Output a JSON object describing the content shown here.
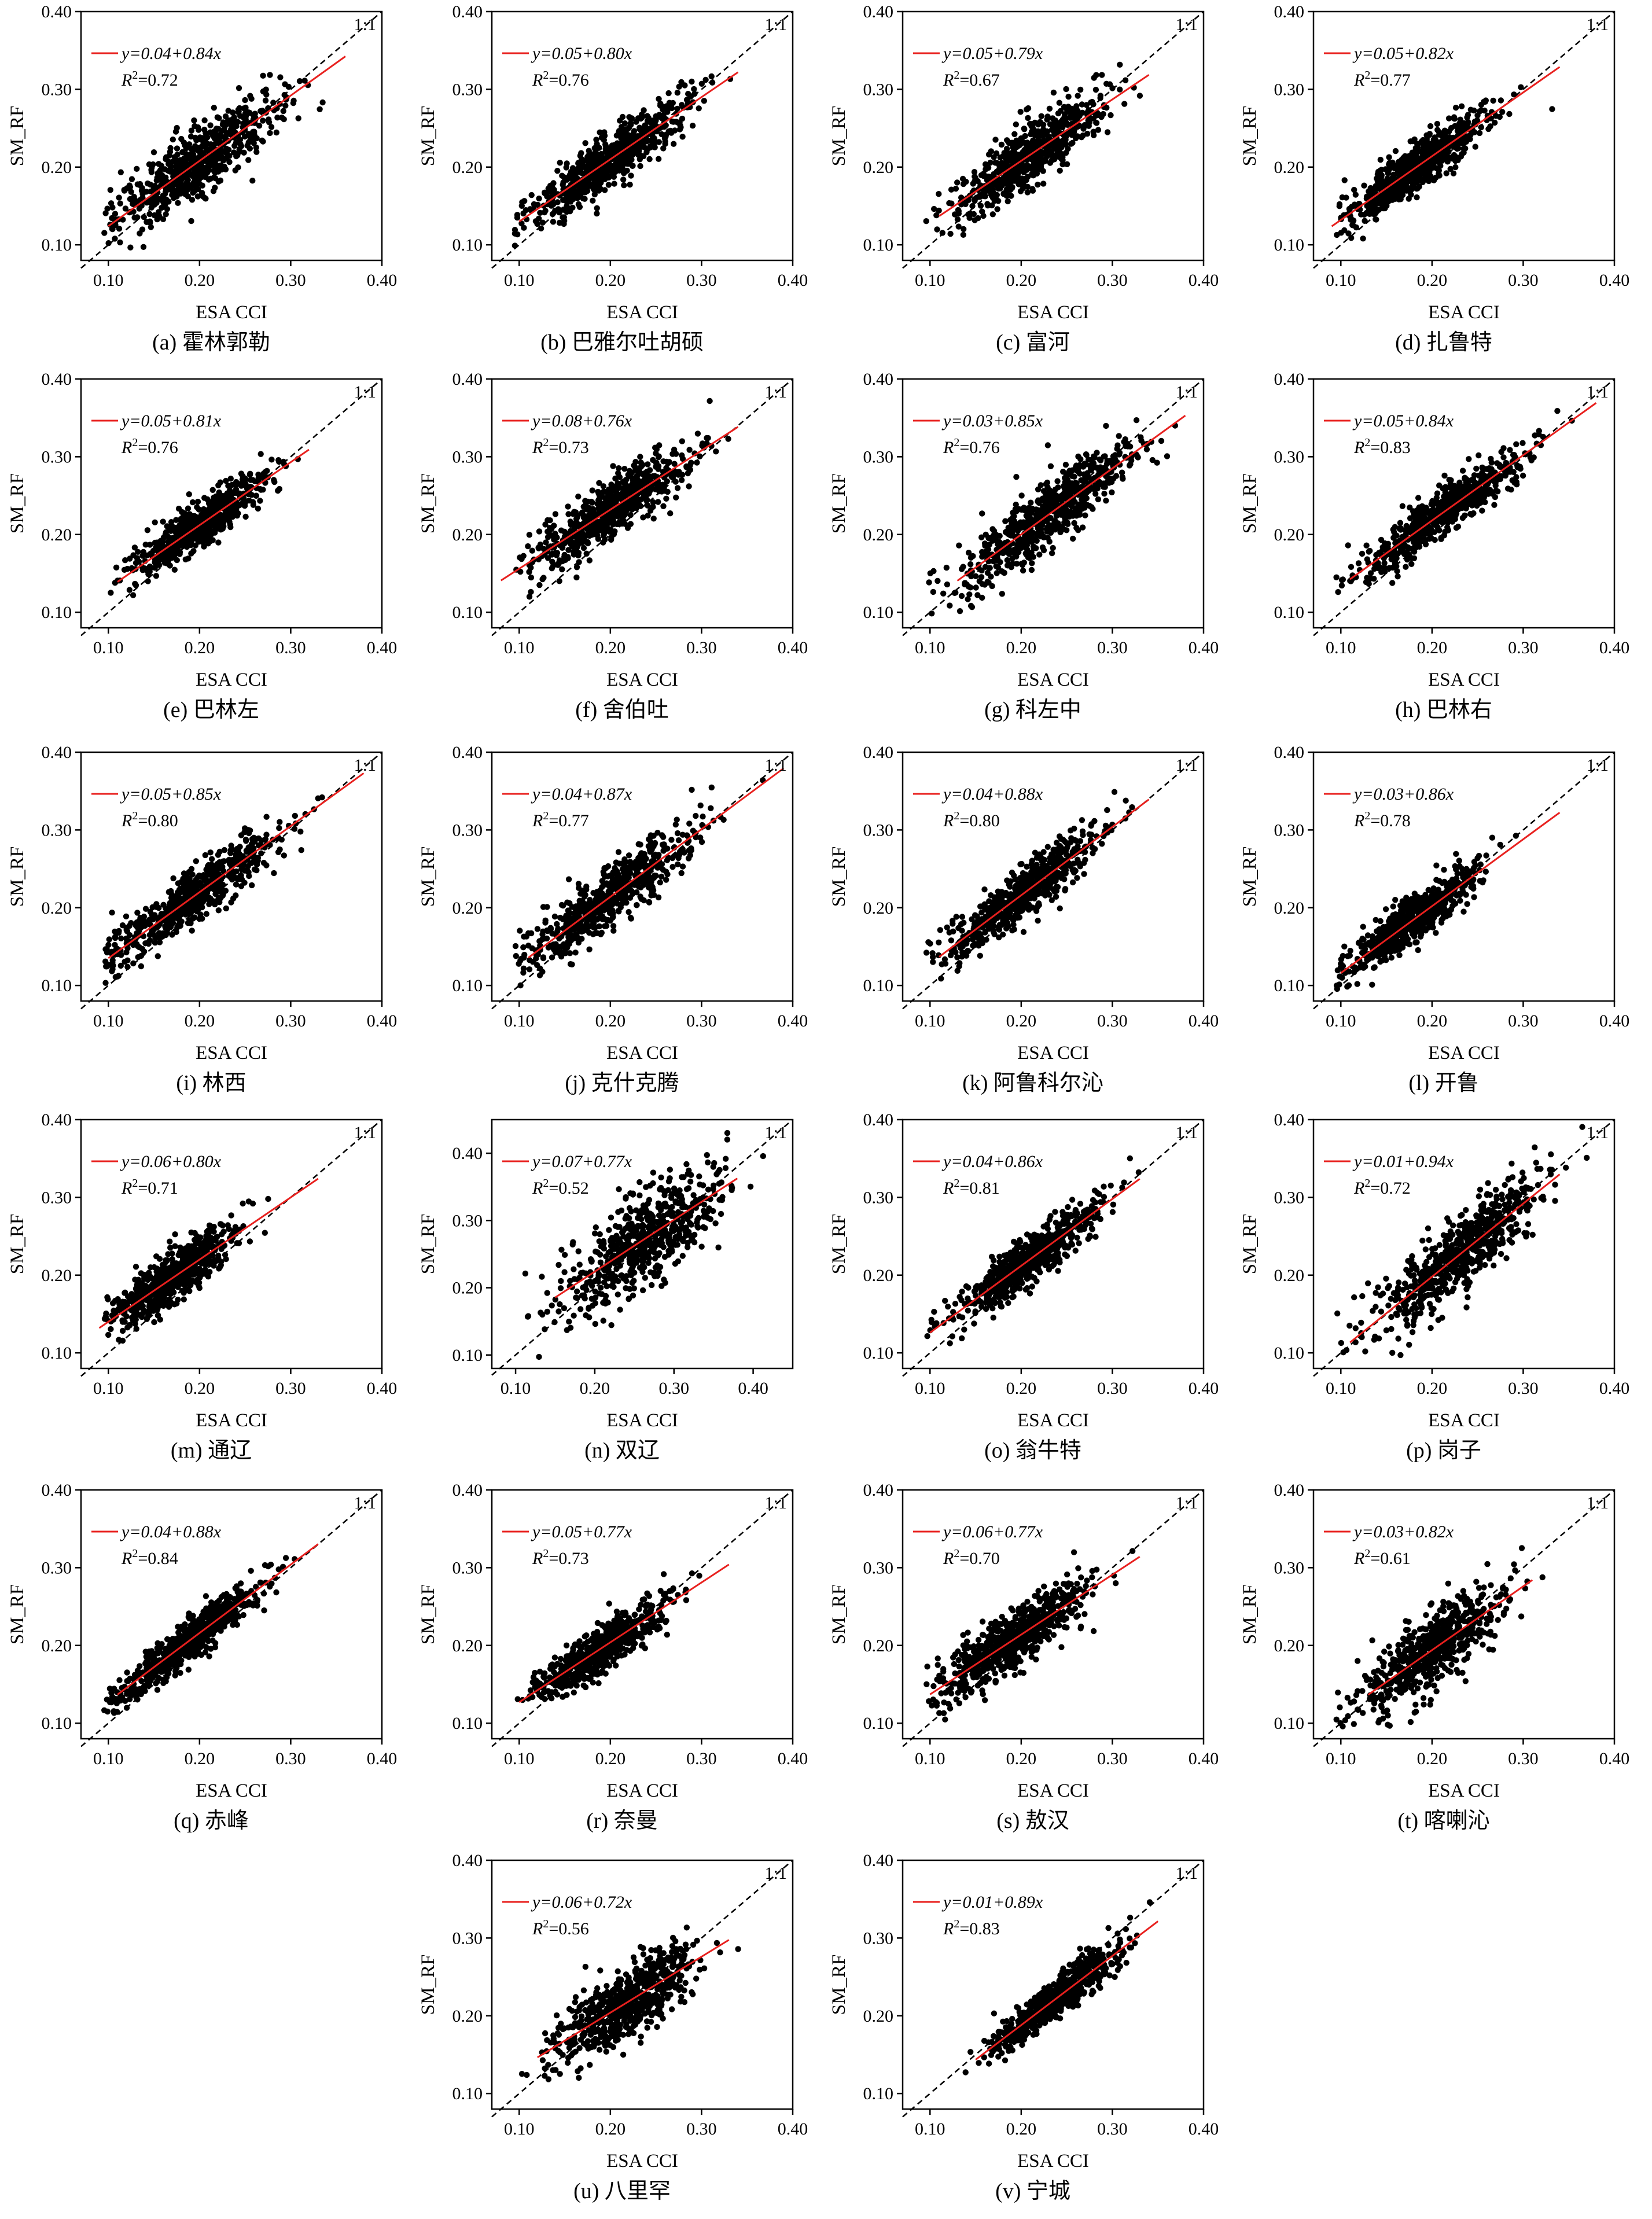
{
  "figure": {
    "x_label": "ESA CCI",
    "y_label": "SM_RF",
    "one_to_one_label": "1:1",
    "r2_prefix": "R",
    "axis_ticks": [
      "0.10",
      "0.20",
      "0.30",
      "0.40"
    ],
    "colors": {
      "points": "#000000",
      "fit_line": "#e8201e",
      "one_to_one": "#000000",
      "axes": "#000000"
    }
  },
  "chart_data": [
    {
      "type": "scatter",
      "id": "a",
      "caption": "(a) 霍林郭勒",
      "equation": "y=0.04+0.84x",
      "r2_value": "=0.72",
      "intercept": 0.04,
      "slope": 0.84,
      "r2": 0.72,
      "x_center": 0.2,
      "y_center": 0.21,
      "spread": 0.045,
      "fit_x": [
        0.1,
        0.36
      ],
      "xlim": [
        0.07,
        0.4
      ],
      "ylim": [
        0.08,
        0.4
      ],
      "xlabel": "ESA CCI",
      "ylabel": "SM_RF"
    },
    {
      "type": "scatter",
      "id": "b",
      "caption": "(b) 巴雅尔吐胡硕",
      "equation": "y=0.05+0.80x",
      "r2_value": "=0.76",
      "intercept": 0.05,
      "slope": 0.8,
      "r2": 0.76,
      "x_center": 0.2,
      "y_center": 0.21,
      "spread": 0.042,
      "fit_x": [
        0.1,
        0.34
      ],
      "xlim": [
        0.07,
        0.4
      ],
      "ylim": [
        0.08,
        0.4
      ],
      "xlabel": "ESA CCI",
      "ylabel": "SM_RF"
    },
    {
      "type": "scatter",
      "id": "c",
      "caption": "(c) 富河",
      "equation": "y=0.05+0.79x",
      "r2_value": "=0.67",
      "intercept": 0.05,
      "slope": 0.79,
      "r2": 0.67,
      "x_center": 0.21,
      "y_center": 0.22,
      "spread": 0.04,
      "fit_x": [
        0.11,
        0.34
      ],
      "xlim": [
        0.07,
        0.4
      ],
      "ylim": [
        0.08,
        0.4
      ],
      "xlabel": "ESA CCI",
      "ylabel": "SM_RF"
    },
    {
      "type": "scatter",
      "id": "d",
      "caption": "(d) 扎鲁特",
      "equation": "y=0.05+0.82x",
      "r2_value": "=0.77",
      "intercept": 0.05,
      "slope": 0.82,
      "r2": 0.77,
      "x_center": 0.18,
      "y_center": 0.2,
      "spread": 0.04,
      "fit_x": [
        0.09,
        0.34
      ],
      "xlim": [
        0.07,
        0.4
      ],
      "ylim": [
        0.08,
        0.4
      ],
      "xlabel": "ESA CCI",
      "ylabel": "SM_RF"
    },
    {
      "type": "scatter",
      "id": "e",
      "caption": "(e) 巴林左",
      "equation": "y=0.05+0.81x",
      "r2_value": "=0.76",
      "intercept": 0.05,
      "slope": 0.81,
      "r2": 0.76,
      "x_center": 0.2,
      "y_center": 0.21,
      "spread": 0.035,
      "fit_x": [
        0.11,
        0.32
      ],
      "xlim": [
        0.07,
        0.4
      ],
      "ylim": [
        0.08,
        0.4
      ],
      "xlabel": "ESA CCI",
      "ylabel": "SM_RF"
    },
    {
      "type": "scatter",
      "id": "f",
      "caption": "(f) 舍伯吐",
      "equation": "y=0.08+0.76x",
      "r2_value": "=0.73",
      "intercept": 0.08,
      "slope": 0.76,
      "r2": 0.73,
      "x_center": 0.2,
      "y_center": 0.23,
      "spread": 0.045,
      "fit_x": [
        0.08,
        0.34
      ],
      "xlim": [
        0.07,
        0.4
      ],
      "ylim": [
        0.08,
        0.4
      ],
      "xlabel": "ESA CCI",
      "ylabel": "SM_RF"
    },
    {
      "type": "scatter",
      "id": "g",
      "caption": "(g) 科左中",
      "equation": "y=0.03+0.85x",
      "r2_value": "=0.76",
      "intercept": 0.03,
      "slope": 0.85,
      "r2": 0.76,
      "x_center": 0.23,
      "y_center": 0.23,
      "spread": 0.05,
      "fit_x": [
        0.13,
        0.38
      ],
      "xlim": [
        0.07,
        0.4
      ],
      "ylim": [
        0.08,
        0.4
      ],
      "xlabel": "ESA CCI",
      "ylabel": "SM_RF"
    },
    {
      "type": "scatter",
      "id": "h",
      "caption": "(h) 巴林右",
      "equation": "y=0.05+0.84x",
      "r2_value": "=0.83",
      "intercept": 0.05,
      "slope": 0.84,
      "r2": 0.83,
      "x_center": 0.21,
      "y_center": 0.22,
      "spread": 0.045,
      "fit_x": [
        0.11,
        0.38
      ],
      "xlim": [
        0.07,
        0.4
      ],
      "ylim": [
        0.08,
        0.4
      ],
      "xlabel": "ESA CCI",
      "ylabel": "SM_RF"
    },
    {
      "type": "scatter",
      "id": "i",
      "caption": "(i) 林西",
      "equation": "y=0.05+0.85x",
      "r2_value": "=0.80",
      "intercept": 0.05,
      "slope": 0.85,
      "r2": 0.8,
      "x_center": 0.19,
      "y_center": 0.21,
      "spread": 0.045,
      "fit_x": [
        0.1,
        0.38
      ],
      "xlim": [
        0.07,
        0.4
      ],
      "ylim": [
        0.08,
        0.4
      ],
      "xlabel": "ESA CCI",
      "ylabel": "SM_RF"
    },
    {
      "type": "scatter",
      "id": "j",
      "caption": "(j) 克什克腾",
      "equation": "y=0.04+0.87x",
      "r2_value": "=0.77",
      "intercept": 0.04,
      "slope": 0.87,
      "r2": 0.77,
      "x_center": 0.2,
      "y_center": 0.21,
      "spread": 0.045,
      "fit_x": [
        0.11,
        0.39
      ],
      "xlim": [
        0.07,
        0.4
      ],
      "ylim": [
        0.08,
        0.4
      ],
      "xlabel": "ESA CCI",
      "ylabel": "SM_RF"
    },
    {
      "type": "scatter",
      "id": "k",
      "caption": "(k) 阿鲁科尔沁",
      "equation": "y=0.04+0.88x",
      "r2_value": "=0.80",
      "intercept": 0.04,
      "slope": 0.88,
      "r2": 0.8,
      "x_center": 0.2,
      "y_center": 0.22,
      "spread": 0.04,
      "fit_x": [
        0.11,
        0.34
      ],
      "xlim": [
        0.07,
        0.4
      ],
      "ylim": [
        0.08,
        0.4
      ],
      "xlabel": "ESA CCI",
      "ylabel": "SM_RF"
    },
    {
      "type": "scatter",
      "id": "l",
      "caption": "(l) 开鲁",
      "equation": "y=0.03+0.86x",
      "r2_value": "=0.78",
      "intercept": 0.03,
      "slope": 0.86,
      "r2": 0.78,
      "x_center": 0.18,
      "y_center": 0.19,
      "spread": 0.035,
      "fit_x": [
        0.1,
        0.34
      ],
      "xlim": [
        0.07,
        0.4
      ],
      "ylim": [
        0.08,
        0.4
      ],
      "xlabel": "ESA CCI",
      "ylabel": "SM_RF"
    },
    {
      "type": "scatter",
      "id": "m",
      "caption": "(m) 通辽",
      "equation": "y=0.06+0.80x",
      "r2_value": "=0.71",
      "intercept": 0.06,
      "slope": 0.8,
      "r2": 0.71,
      "x_center": 0.17,
      "y_center": 0.2,
      "spread": 0.035,
      "fit_x": [
        0.09,
        0.33
      ],
      "xlim": [
        0.07,
        0.4
      ],
      "ylim": [
        0.08,
        0.4
      ],
      "xlabel": "ESA CCI",
      "ylabel": "SM_RF"
    },
    {
      "type": "scatter",
      "id": "n",
      "caption": "(n) 双辽",
      "equation": "y=0.07+0.77x",
      "r2_value": "=0.52",
      "intercept": 0.07,
      "slope": 0.77,
      "r2": 0.52,
      "x_center": 0.26,
      "y_center": 0.27,
      "spread": 0.05,
      "fit_x": [
        0.15,
        0.38
      ],
      "xlim": [
        0.07,
        0.45
      ],
      "ylim": [
        0.08,
        0.45
      ],
      "xlabel": "ESA CCI",
      "ylabel": "SM_RF"
    },
    {
      "type": "scatter",
      "id": "o",
      "caption": "(o) 翁牛特",
      "equation": "y=0.04+0.86x",
      "r2_value": "=0.81",
      "intercept": 0.04,
      "slope": 0.86,
      "r2": 0.81,
      "x_center": 0.21,
      "y_center": 0.22,
      "spread": 0.04,
      "fit_x": [
        0.1,
        0.33
      ],
      "xlim": [
        0.07,
        0.4
      ],
      "ylim": [
        0.08,
        0.4
      ],
      "xlabel": "ESA CCI",
      "ylabel": "SM_RF"
    },
    {
      "type": "scatter",
      "id": "p",
      "caption": "(p) 岗子",
      "equation": "y=0.01+0.94x",
      "r2_value": "=0.72",
      "intercept": 0.01,
      "slope": 0.94,
      "r2": 0.72,
      "x_center": 0.23,
      "y_center": 0.23,
      "spread": 0.045,
      "fit_x": [
        0.11,
        0.34
      ],
      "xlim": [
        0.07,
        0.4
      ],
      "ylim": [
        0.08,
        0.4
      ],
      "xlabel": "ESA CCI",
      "ylabel": "SM_RF"
    },
    {
      "type": "scatter",
      "id": "q",
      "caption": "(q) 赤峰",
      "equation": "y=0.04+0.88x",
      "r2_value": "=0.84",
      "intercept": 0.04,
      "slope": 0.88,
      "r2": 0.84,
      "x_center": 0.19,
      "y_center": 0.21,
      "spread": 0.04,
      "fit_x": [
        0.11,
        0.33
      ],
      "xlim": [
        0.07,
        0.4
      ],
      "ylim": [
        0.08,
        0.4
      ],
      "xlabel": "ESA CCI",
      "ylabel": "SM_RF"
    },
    {
      "type": "scatter",
      "id": "r",
      "caption": "(r) 奈曼",
      "equation": "y=0.05+0.77x",
      "r2_value": "=0.73",
      "intercept": 0.05,
      "slope": 0.77,
      "r2": 0.73,
      "x_center": 0.19,
      "y_center": 0.2,
      "spread": 0.035,
      "fit_x": [
        0.1,
        0.33
      ],
      "xlim": [
        0.07,
        0.4
      ],
      "ylim": [
        0.08,
        0.4
      ],
      "xlabel": "ESA CCI",
      "ylabel": "SM_RF"
    },
    {
      "type": "scatter",
      "id": "s",
      "caption": "(s) 敖汉",
      "equation": "y=0.06+0.77x",
      "r2_value": "=0.70",
      "intercept": 0.06,
      "slope": 0.77,
      "r2": 0.7,
      "x_center": 0.19,
      "y_center": 0.21,
      "spread": 0.04,
      "fit_x": [
        0.1,
        0.33
      ],
      "xlim": [
        0.07,
        0.4
      ],
      "ylim": [
        0.08,
        0.4
      ],
      "xlabel": "ESA CCI",
      "ylabel": "SM_RF"
    },
    {
      "type": "scatter",
      "id": "t",
      "caption": "(t) 喀喇沁",
      "equation": "y=0.03+0.82x",
      "r2_value": "=0.61",
      "intercept": 0.03,
      "slope": 0.82,
      "r2": 0.61,
      "x_center": 0.2,
      "y_center": 0.2,
      "spread": 0.04,
      "fit_x": [
        0.13,
        0.31
      ],
      "xlim": [
        0.07,
        0.4
      ],
      "ylim": [
        0.08,
        0.4
      ],
      "xlabel": "ESA CCI",
      "ylabel": "SM_RF"
    },
    {
      "type": "scatter",
      "id": "u",
      "caption": "(u) 八里罕",
      "equation": "y=0.06+0.72x",
      "r2_value": "=0.56",
      "intercept": 0.06,
      "slope": 0.72,
      "r2": 0.56,
      "x_center": 0.22,
      "y_center": 0.22,
      "spread": 0.04,
      "fit_x": [
        0.12,
        0.33
      ],
      "xlim": [
        0.07,
        0.4
      ],
      "ylim": [
        0.08,
        0.4
      ],
      "xlabel": "ESA CCI",
      "ylabel": "SM_RF"
    },
    {
      "type": "scatter",
      "id": "v",
      "caption": "(v) 宁城",
      "equation": "y=0.01+0.89x",
      "r2_value": "=0.83",
      "intercept": 0.01,
      "slope": 0.89,
      "r2": 0.83,
      "x_center": 0.24,
      "y_center": 0.22,
      "spread": 0.035,
      "fit_x": [
        0.15,
        0.35
      ],
      "xlim": [
        0.07,
        0.4
      ],
      "ylim": [
        0.08,
        0.4
      ],
      "xlabel": "ESA CCI",
      "ylabel": "SM_RF"
    }
  ]
}
